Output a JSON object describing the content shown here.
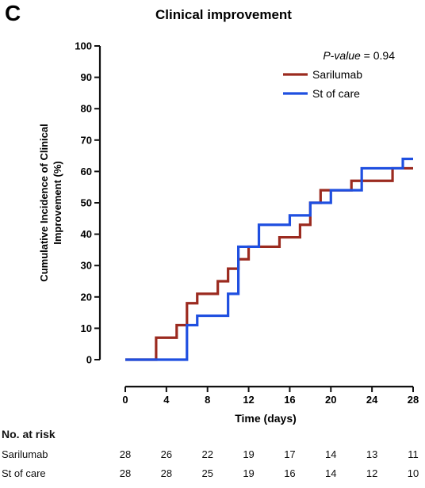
{
  "panel_letter": "C",
  "chart_data": {
    "type": "line",
    "subtype": "step",
    "title": "Clinical improvement",
    "xlabel": "Time (days)",
    "ylabel": "Cumulative Incidence of Clinical Improvement (%)",
    "xlim": [
      0,
      28
    ],
    "ylim": [
      0,
      100
    ],
    "xticks": [
      0,
      4,
      8,
      12,
      16,
      20,
      24,
      28
    ],
    "yticks": [
      0,
      10,
      20,
      30,
      40,
      50,
      60,
      70,
      80,
      90,
      100
    ],
    "grid": false,
    "legend_placement": "top-right",
    "annotation": {
      "italic": "P-value",
      "rest": " = 0.94"
    },
    "series": [
      {
        "name": "Sarilumab",
        "color": "#9b2a1f",
        "x": [
          0,
          3,
          5,
          6,
          7,
          9,
          10,
          11,
          12,
          13,
          15,
          17,
          18,
          19,
          21,
          22,
          25,
          26,
          27,
          28
        ],
        "y": [
          0,
          7,
          11,
          18,
          21,
          25,
          29,
          32,
          36,
          36,
          39,
          43,
          50,
          54,
          54,
          57,
          57,
          61,
          61,
          61
        ]
      },
      {
        "name": "St of care",
        "color": "#1f4fe0",
        "x": [
          0,
          6,
          7,
          10,
          11,
          13,
          16,
          18,
          19,
          20,
          23,
          26,
          27,
          28
        ],
        "y": [
          0,
          11,
          14,
          21,
          36,
          43,
          46,
          50,
          50,
          54,
          61,
          61,
          64,
          64
        ]
      }
    ]
  },
  "risk_table": {
    "title": "No. at risk",
    "times": [
      0,
      4,
      8,
      12,
      16,
      20,
      24,
      28
    ],
    "rows": [
      {
        "label": "Sarilumab",
        "values": [
          "28",
          "26",
          "22",
          "19",
          "17",
          "14",
          "13",
          "11"
        ]
      },
      {
        "label": "St of care",
        "values": [
          "28",
          "28",
          "25",
          "19",
          "16",
          "14",
          "12",
          "10"
        ]
      }
    ]
  }
}
